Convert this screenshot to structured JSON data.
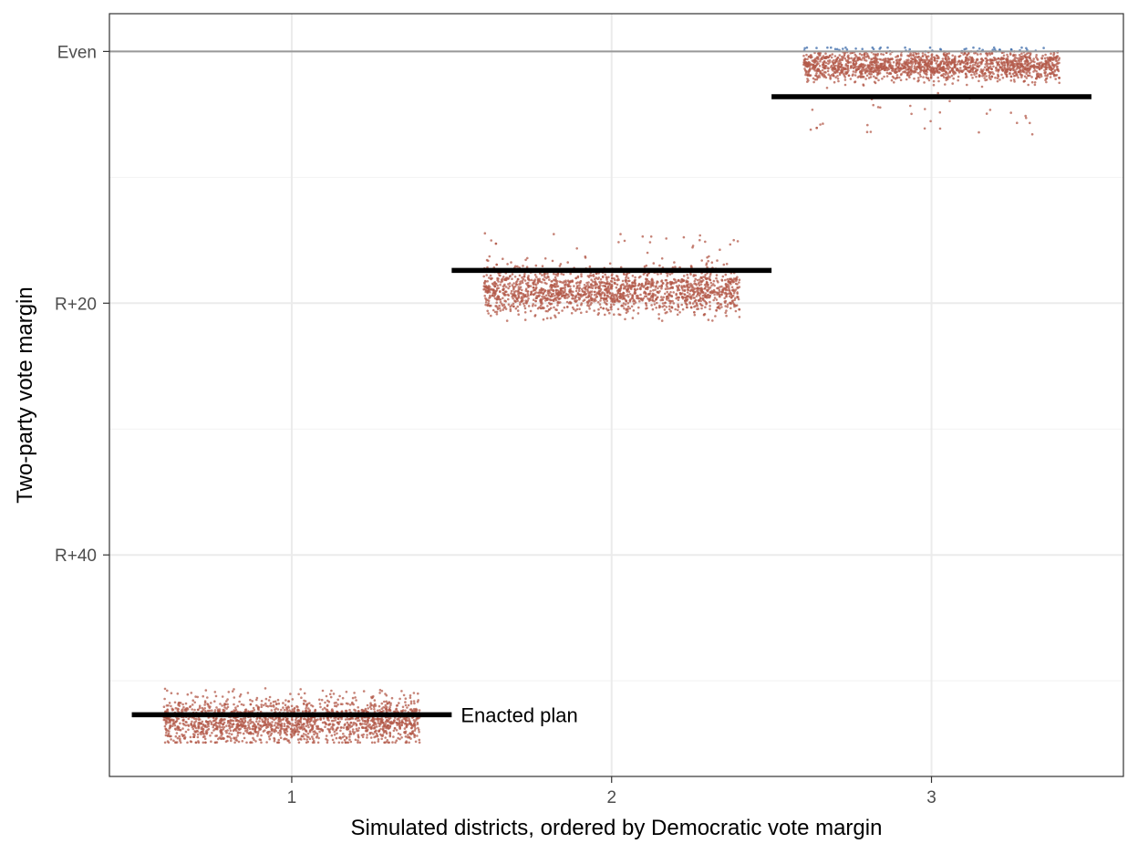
{
  "chart_data": {
    "type": "scatter",
    "xlabel": "Simulated districts, ordered by Democratic vote margin",
    "ylabel": "Two-party vote margin",
    "categories": [
      "1",
      "2",
      "3"
    ],
    "y_ticks": [
      {
        "value": 0,
        "label": "Even"
      },
      {
        "value": -20,
        "label": "R+20"
      },
      {
        "value": -40,
        "label": "R+40"
      }
    ],
    "ylim": [
      -57.6,
      3.0
    ],
    "xlim": [
      0.43,
      3.6
    ],
    "grid": true,
    "reference_line": {
      "value": 0
    },
    "colors": {
      "republican": "#b35a4a",
      "democratic": "#3b6aa8",
      "enacted": "#000000",
      "reference": "#999999"
    },
    "districts": [
      {
        "district": 1,
        "sim_center": -53.2,
        "sim_spread": 0.9,
        "sim_min": -54.9,
        "sim_max": -50.6,
        "enacted": -52.7
      },
      {
        "district": 2,
        "sim_center": -19.0,
        "sim_spread": 0.9,
        "sim_min": -21.4,
        "sim_max": -14.4,
        "enacted": -17.4
      },
      {
        "district": 3,
        "sim_center": -1.1,
        "sim_spread": 0.6,
        "sim_min": -6.6,
        "sim_max": 0.3,
        "enacted": -3.6
      }
    ],
    "annotations": [
      {
        "text": "Enacted plan",
        "district": 1
      }
    ]
  }
}
